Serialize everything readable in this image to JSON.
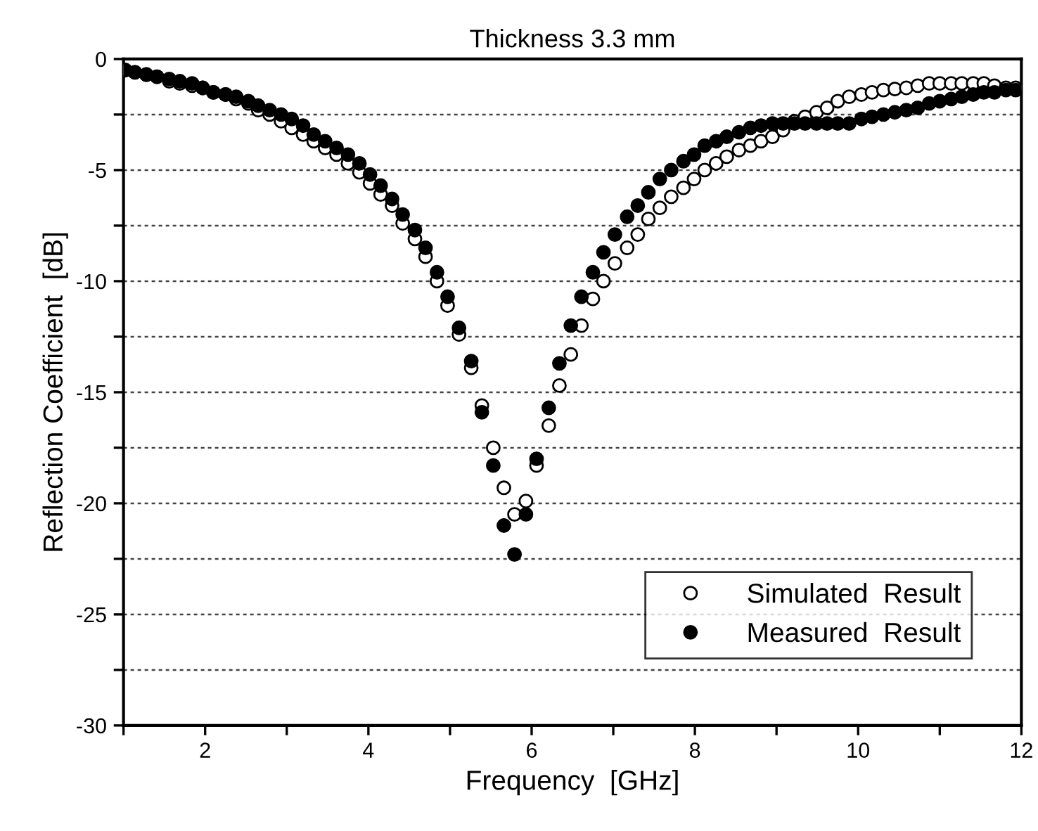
{
  "chart_data": {
    "type": "scatter",
    "title": "Thickness 3.3 mm",
    "xlabel": "Frequency  [GHz]",
    "ylabel": "Reflection Coefficient  [dB]",
    "x": [
      1.02,
      1.14,
      1.28,
      1.41,
      1.56,
      1.69,
      1.84,
      1.97,
      2.1,
      2.25,
      2.38,
      2.53,
      2.65,
      2.79,
      2.93,
      3.06,
      3.2,
      3.33,
      3.47,
      3.61,
      3.75,
      3.89,
      4.02,
      4.15,
      4.29,
      4.42,
      4.57,
      4.7,
      4.84,
      4.97,
      5.11,
      5.26,
      5.39,
      5.53,
      5.66,
      5.79,
      5.93,
      6.06,
      6.21,
      6.34,
      6.48,
      6.61,
      6.75,
      6.88,
      7.02,
      7.17,
      7.3,
      7.43,
      7.57,
      7.71,
      7.86,
      7.99,
      8.12,
      8.26,
      8.39,
      8.54,
      8.68,
      8.81,
      8.95,
      9.08,
      9.22,
      9.35,
      9.49,
      9.62,
      9.75,
      9.89,
      10.04,
      10.17,
      10.31,
      10.45,
      10.59,
      10.73,
      10.87,
      11.0,
      11.14,
      11.27,
      11.41,
      11.54,
      11.67,
      11.81,
      11.93
    ],
    "series": [
      {
        "name": "Simulated  Result",
        "color": "#000000",
        "values": [
          -0.5,
          -0.6,
          -0.7,
          -0.8,
          -1.0,
          -1.1,
          -1.2,
          -1.3,
          -1.5,
          -1.6,
          -1.8,
          -2.0,
          -2.3,
          -2.5,
          -2.8,
          -3.1,
          -3.4,
          -3.7,
          -4.0,
          -4.3,
          -4.7,
          -5.1,
          -5.6,
          -6.1,
          -6.6,
          -7.4,
          -8.1,
          -8.9,
          -10.0,
          -11.1,
          -12.4,
          -13.9,
          -15.6,
          -17.5,
          -19.3,
          -20.5,
          -19.9,
          -18.3,
          -16.5,
          -14.7,
          -13.3,
          -12.0,
          -10.8,
          -10.0,
          -9.2,
          -8.5,
          -7.9,
          -7.2,
          -6.7,
          -6.2,
          -5.8,
          -5.4,
          -5.0,
          -4.7,
          -4.4,
          -4.1,
          -3.9,
          -3.7,
          -3.5,
          -3.2,
          -2.8,
          -2.6,
          -2.4,
          -2.2,
          -1.9,
          -1.7,
          -1.6,
          -1.5,
          -1.4,
          -1.35,
          -1.3,
          -1.2,
          -1.1,
          -1.1,
          -1.1,
          -1.1,
          -1.1,
          -1.1,
          -1.2,
          -1.3,
          -1.3
        ]
      },
      {
        "name": "Measured  Result",
        "color": "#000000",
        "values": [
          -0.5,
          -0.6,
          -0.7,
          -0.8,
          -0.9,
          -1.0,
          -1.1,
          -1.3,
          -1.5,
          -1.6,
          -1.7,
          -1.9,
          -2.1,
          -2.3,
          -2.5,
          -2.7,
          -3.0,
          -3.4,
          -3.7,
          -4.0,
          -4.3,
          -4.7,
          -5.2,
          -5.7,
          -6.3,
          -7.0,
          -7.7,
          -8.5,
          -9.6,
          -10.7,
          -12.1,
          -13.6,
          -15.9,
          -18.3,
          -21.0,
          -22.3,
          -20.5,
          -18.0,
          -15.7,
          -13.7,
          -12.0,
          -10.7,
          -9.6,
          -8.7,
          -7.9,
          -7.1,
          -6.6,
          -6.0,
          -5.4,
          -5.0,
          -4.6,
          -4.3,
          -3.9,
          -3.7,
          -3.5,
          -3.3,
          -3.1,
          -3.0,
          -2.9,
          -2.9,
          -2.9,
          -2.9,
          -2.9,
          -2.9,
          -2.9,
          -2.9,
          -2.7,
          -2.6,
          -2.5,
          -2.4,
          -2.3,
          -2.2,
          -2.0,
          -1.9,
          -1.8,
          -1.7,
          -1.6,
          -1.5,
          -1.5,
          -1.4,
          -1.4
        ]
      }
    ],
    "xlim": [
      1,
      12
    ],
    "xticks": [
      {
        "value": 1,
        "label": null
      },
      2,
      {
        "value": 3,
        "label": null
      },
      4,
      {
        "value": 5,
        "label": null
      },
      6,
      {
        "value": 7,
        "label": null
      },
      8,
      {
        "value": 9,
        "label": null
      },
      10,
      {
        "value": 11,
        "label": null
      },
      12
    ],
    "ylim": [
      -30,
      0
    ],
    "yticks": [
      -30,
      {
        "value": -27.5,
        "label": null
      },
      -25,
      {
        "value": -22.5,
        "label": null
      },
      -20,
      {
        "value": -17.5,
        "label": null
      },
      -15,
      {
        "value": -12.5,
        "label": null
      },
      -10,
      {
        "value": -7.5,
        "label": null
      },
      -5,
      {
        "value": -2.5,
        "label": null
      },
      0
    ],
    "grid": "y",
    "legend": "bottom right",
    "marker": "circle"
  }
}
